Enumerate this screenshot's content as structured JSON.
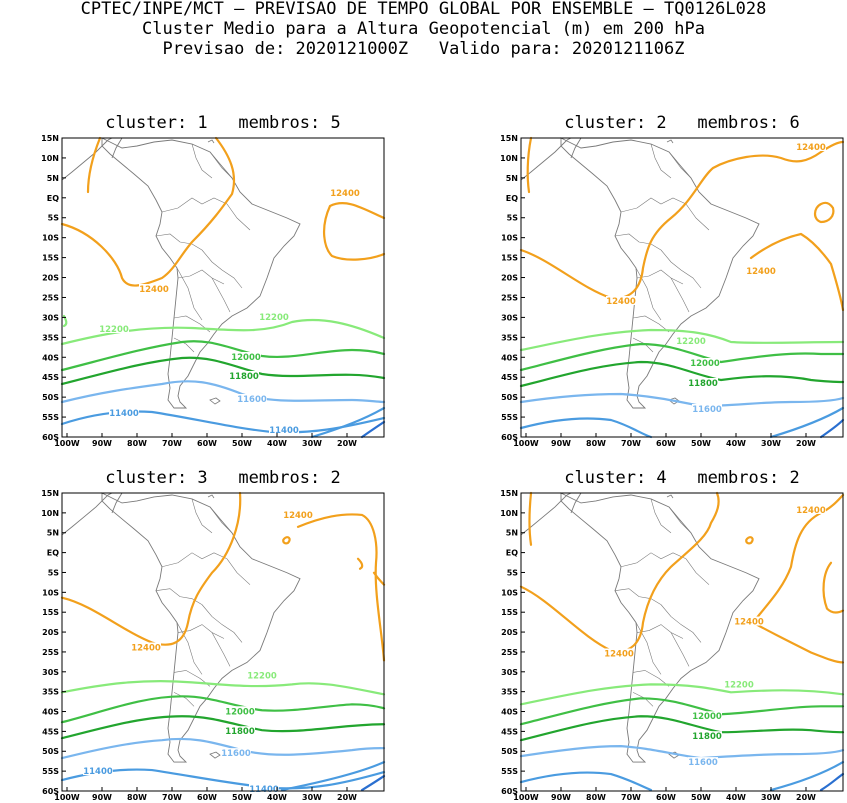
{
  "header": {
    "line1": "CPTEC/INPE/MCT — PREVISAO DE TEMPO GLOBAL POR ENSEMBLE — TQ0126L028",
    "line2": "Cluster Medio para a Altura Geopotencial (m) em 200 hPa",
    "line3": "Previsao de: 2020121000Z   Valido para: 2020121106Z"
  },
  "axes": {
    "lat_labels": [
      "15N",
      "10N",
      "5N",
      "EQ",
      "5S",
      "10S",
      "15S",
      "20S",
      "25S",
      "30S",
      "35S",
      "40S",
      "45S",
      "50S",
      "55S",
      "60S"
    ],
    "lon_labels": [
      "100W",
      "90W",
      "80W",
      "70W",
      "60W",
      "50W",
      "40W",
      "30W",
      "20W"
    ]
  },
  "colors": {
    "c11400": "#4a9be0",
    "c11600": "#7ab6ee",
    "c11800": "#22a52e",
    "c12000": "#3fbf45",
    "c12200": "#88ea7a",
    "c12400": "#f2a01c",
    "c_low": "#2a6fd0",
    "coast": "#7a7a7a"
  },
  "panels": [
    {
      "title": "cluster: 1   membros: 5",
      "labels": [
        "12400",
        "12400",
        "12200",
        "12200",
        "12000",
        "11800",
        "11600",
        "11400",
        "11400"
      ]
    },
    {
      "title": "cluster: 2   membros: 6",
      "labels": [
        "12400",
        "12400",
        "12400",
        "12200",
        "12000",
        "11800",
        "11600"
      ]
    },
    {
      "title": "cluster: 3   membros: 2",
      "labels": [
        "12400",
        "12400",
        "12200",
        "12000",
        "11800",
        "11600",
        "11400",
        "11400"
      ]
    },
    {
      "title": "cluster: 4   membros: 2",
      "labels": [
        "12400",
        "12400",
        "12400",
        "12200",
        "12000",
        "11800",
        "11600"
      ]
    }
  ]
}
